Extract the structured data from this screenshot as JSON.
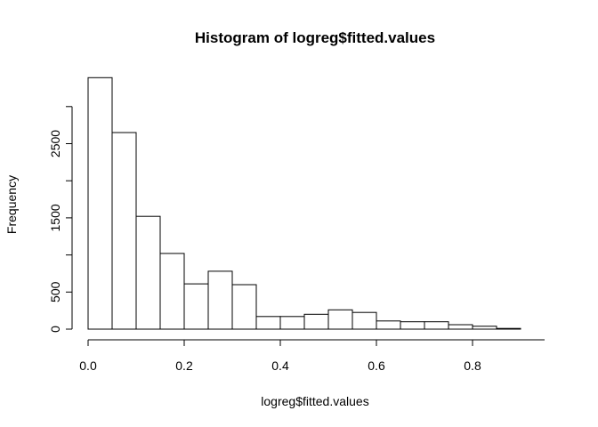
{
  "chart_data": {
    "type": "bar",
    "title": "Histogram of logreg$fitted.values",
    "xlabel": "logreg$fitted.values",
    "ylabel": "Frequency",
    "bin_width": 0.05,
    "bin_starts": [
      0.0,
      0.05,
      0.1,
      0.15,
      0.2,
      0.25,
      0.3,
      0.35,
      0.4,
      0.45,
      0.5,
      0.55,
      0.6,
      0.65,
      0.7,
      0.75,
      0.8,
      0.85
    ],
    "values": [
      3390,
      2650,
      1520,
      1020,
      610,
      780,
      600,
      170,
      170,
      200,
      260,
      225,
      110,
      100,
      100,
      60,
      40,
      10
    ],
    "xlim": [
      0.0,
      0.95
    ],
    "ylim": [
      0,
      3390
    ],
    "x_ticks": [
      {
        "value": 0.0,
        "label": "0.0"
      },
      {
        "value": 0.2,
        "label": "0.2"
      },
      {
        "value": 0.4,
        "label": "0.4"
      },
      {
        "value": 0.6,
        "label": "0.6"
      },
      {
        "value": 0.8,
        "label": "0.8"
      }
    ],
    "y_ticks": [
      {
        "value": 0,
        "label": "0"
      },
      {
        "value": 500,
        "label": "500"
      },
      {
        "value": 1000,
        "label": ""
      },
      {
        "value": 1500,
        "label": "1500"
      },
      {
        "value": 2000,
        "label": ""
      },
      {
        "value": 2500,
        "label": "2500"
      },
      {
        "value": 3000,
        "label": ""
      }
    ],
    "y_axis_max": 3000,
    "grid": false,
    "legend": "none",
    "bar_fill": "#ffffff",
    "bar_stroke": "#000000"
  }
}
